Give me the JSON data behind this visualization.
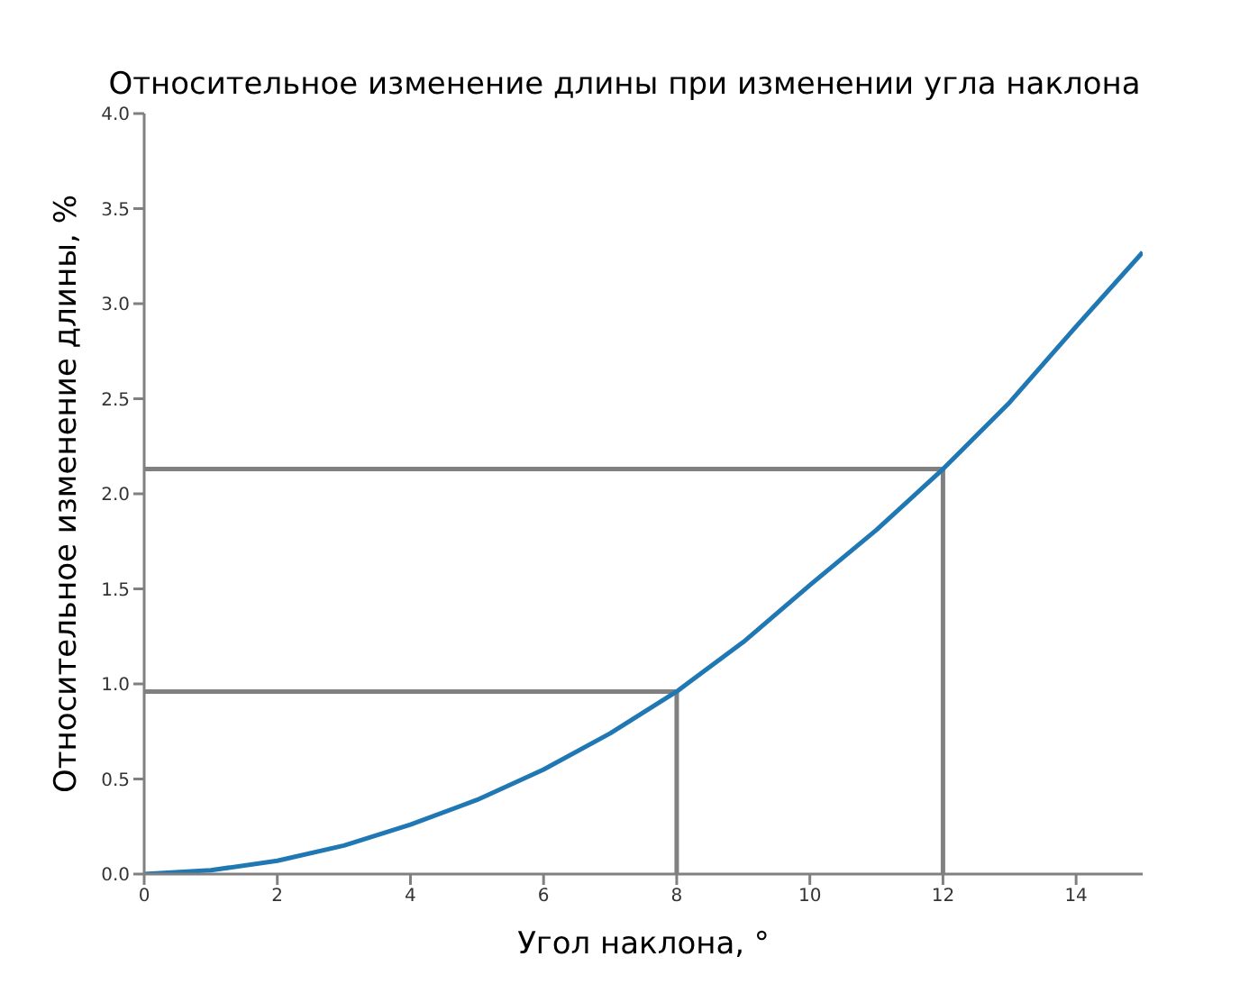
{
  "chart_data": {
    "type": "line",
    "title": "Относительное изменение длины при изменении угла наклона",
    "xlabel": "Угол наклона, °",
    "ylabel": "Относительное изменение длины, %",
    "xlim": [
      0,
      15
    ],
    "ylim": [
      0,
      4
    ],
    "xticks": [
      0,
      2,
      4,
      6,
      8,
      10,
      12,
      14
    ],
    "yticks": [
      {
        "value": 0,
        "label": "0.0"
      },
      0.5,
      {
        "value": 1,
        "label": "1.0"
      },
      1.5,
      {
        "value": 2,
        "label": "2.0"
      },
      2.5,
      {
        "value": 3,
        "label": "3.0"
      },
      3.5,
      {
        "value": 4,
        "label": "4.0"
      }
    ],
    "marker": "none",
    "series": [
      {
        "color": "#1f77b4",
        "x": [
          0,
          1,
          2,
          3,
          4,
          5,
          6,
          7,
          8,
          9,
          10,
          11,
          12,
          13,
          14,
          15
        ],
        "values": [
          0,
          0.02,
          0.07,
          0.15,
          0.26,
          0.39,
          0.55,
          0.74,
          0.96,
          1.22,
          1.52,
          1.81,
          2.13,
          2.48,
          2.88,
          3.27
        ]
      },
      {
        "color": "#808080",
        "x": [
          0,
          8,
          8
        ],
        "values": [
          0.96,
          0.96,
          0
        ]
      },
      {
        "color": "#808080",
        "x": [
          0,
          12,
          12
        ],
        "values": [
          2.13,
          2.13,
          0
        ]
      }
    ]
  }
}
